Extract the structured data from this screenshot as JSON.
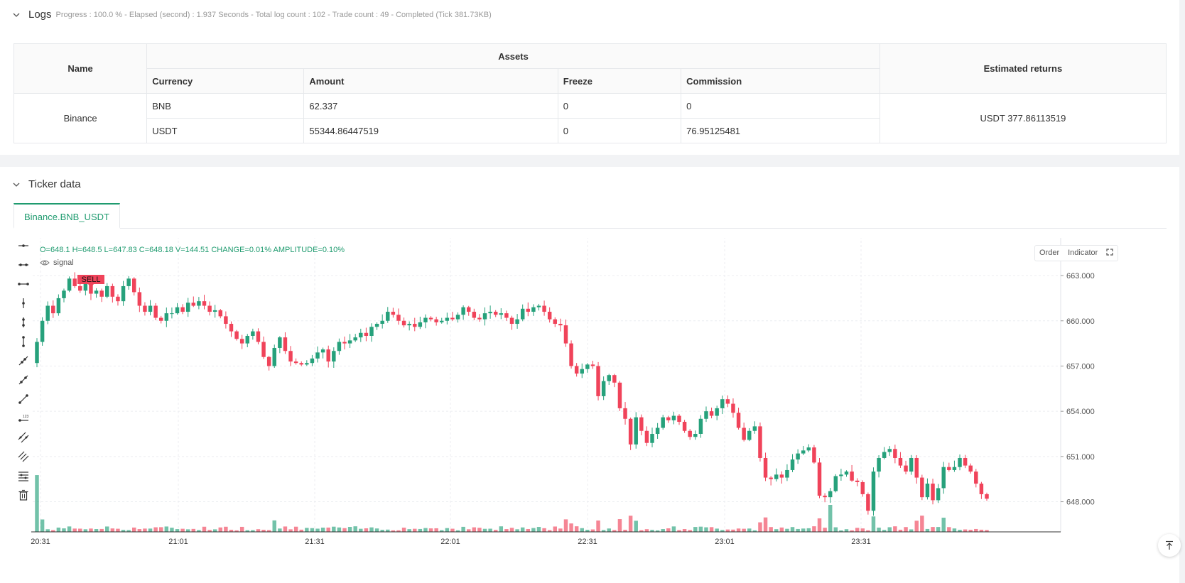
{
  "logs": {
    "title": "Logs",
    "summary": "Progress : 100.0 % - Elapsed (second) : 1.937  Seconds - Total log count : 102 - Trade count : 49 - Completed (Tick 381.73KB)"
  },
  "assets_table": {
    "name_header": "Name",
    "assets_header": "Assets",
    "returns_header": "Estimated returns",
    "columns": [
      "Currency",
      "Amount",
      "Freeze",
      "Commission"
    ],
    "exchange": "Binance",
    "rows": [
      {
        "currency": "BNB",
        "amount": "62.337",
        "freeze": "0",
        "commission": "0"
      },
      {
        "currency": "USDT",
        "amount": "55344.86447519",
        "freeze": "0",
        "commission": "76.95125481"
      }
    ],
    "estimated_returns": "USDT 377.86113519"
  },
  "ticker": {
    "title": "Ticker data",
    "tab": "Binance.BNB_USDT",
    "ohlc": {
      "o": "O=648.1",
      "h": "H=648.5",
      "l": "L=647.83",
      "c": "C=648.18",
      "v": "V=144.51",
      "change": "CHANGE=0.01%",
      "amplitude": "AMPLITUDE=0.10%"
    },
    "signal_label": "signal",
    "buttons": {
      "order": "Order",
      "indicator": "Indicator"
    },
    "sell_label": "SELL"
  },
  "colors": {
    "up": "#26a17b",
    "down": "#f0435a",
    "accent": "#1f9b6f"
  },
  "chart_data": {
    "type": "candlestick",
    "x_tick_labels": [
      "20:31",
      "21:01",
      "21:31",
      "22:01",
      "22:31",
      "23:01",
      "23:31"
    ],
    "y_tick_labels": [
      "663.000",
      "660.000",
      "657.000",
      "654.000",
      "651.000",
      "648.000"
    ],
    "ylim": [
      646.0,
      665.5
    ],
    "grid": true,
    "closes": [
      658.6,
      660.0,
      661.0,
      660.5,
      661.5,
      662.0,
      662.8,
      662.3,
      662.0,
      662.5,
      661.8,
      662.0,
      661.6,
      662.3,
      661.6,
      661.3,
      662.3,
      662.8,
      661.9,
      661.0,
      660.6,
      661.0,
      660.2,
      660.0,
      660.5,
      660.5,
      660.9,
      660.6,
      661.2,
      661.0,
      661.3,
      661.0,
      660.6,
      660.7,
      660.3,
      659.8,
      659.3,
      658.8,
      658.5,
      659.0,
      659.3,
      658.6,
      657.6,
      657.0,
      658.2,
      658.9,
      658.0,
      657.3,
      657.2,
      657.1,
      657.2,
      657.5,
      657.9,
      658.1,
      657.3,
      658.0,
      658.6,
      658.5,
      658.7,
      658.9,
      659.2,
      659.0,
      659.6,
      659.8,
      660.0,
      660.6,
      660.4,
      660.0,
      659.7,
      659.8,
      659.6,
      659.9,
      660.2,
      660.1,
      659.9,
      660.0,
      660.2,
      660.1,
      660.4,
      660.9,
      660.6,
      660.2,
      660.1,
      660.5,
      660.6,
      660.4,
      660.5,
      660.2,
      659.8,
      660.1,
      660.8,
      660.6,
      660.9,
      661.0,
      660.6,
      660.1,
      659.8,
      659.7,
      658.5,
      657.0,
      656.5,
      656.8,
      657.1,
      657.0,
      655.0,
      656.0,
      656.4,
      655.9,
      654.2,
      653.5,
      651.8,
      653.6,
      652.7,
      651.9,
      652.5,
      652.9,
      653.6,
      653.4,
      653.7,
      653.3,
      652.7,
      652.3,
      652.5,
      653.5,
      654.0,
      653.7,
      654.2,
      654.8,
      654.5,
      653.9,
      652.9,
      652.1,
      652.7,
      653.0,
      650.9,
      649.6,
      649.5,
      649.8,
      649.6,
      650.1,
      650.8,
      651.2,
      651.4,
      651.6,
      650.6,
      648.4,
      648.3,
      648.7,
      649.7,
      649.8,
      650.0,
      649.4,
      649.3,
      648.5,
      647.4,
      650.0,
      650.9,
      651.3,
      651.5,
      650.9,
      650.4,
      650.0,
      650.9,
      649.6,
      648.3,
      649.2,
      648.1,
      648.9,
      650.3,
      650.1,
      650.3,
      650.9,
      650.4,
      650.0,
      649.2,
      648.5,
      648.2
    ]
  }
}
